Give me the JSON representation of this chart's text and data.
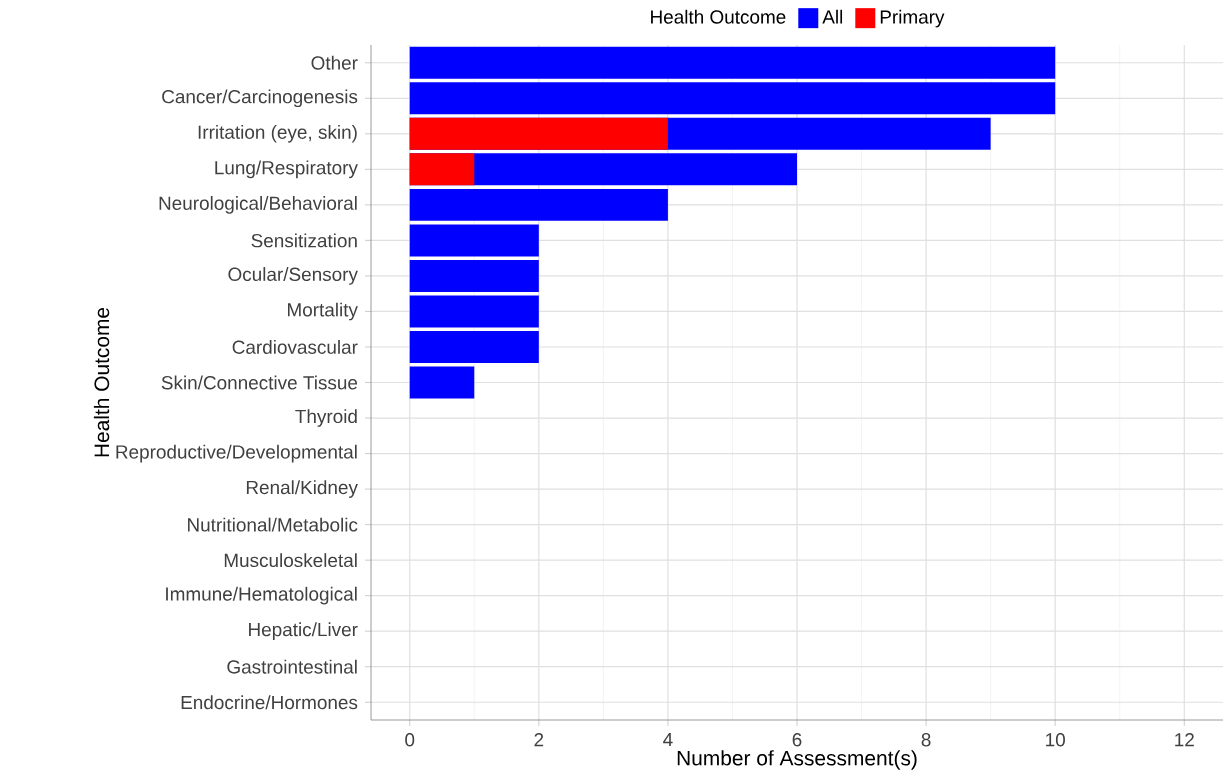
{
  "chart_data": {
    "type": "bar",
    "orientation": "horizontal",
    "xlabel": "Number of Assessment(s)",
    "ylabel": "Health Outcome",
    "legend_title": "Health Outcome",
    "categories": [
      "Other",
      "Cancer/Carcinogenesis",
      "Irritation (eye, skin)",
      "Lung/Respiratory",
      "Neurological/Behavioral",
      "Sensitization",
      "Ocular/Sensory",
      "Mortality",
      "Cardiovascular",
      "Skin/Connective Tissue",
      "Thyroid",
      "Reproductive/Developmental",
      "Renal/Kidney",
      "Nutritional/Metabolic",
      "Musculoskeletal",
      "Immune/Hematological",
      "Hepatic/Liver",
      "Gastrointestinal",
      "Endocrine/Hormones"
    ],
    "series": [
      {
        "name": "All",
        "color": "#0000ff",
        "values": [
          10,
          10,
          9,
          6,
          4,
          2,
          2,
          2,
          2,
          1,
          0,
          0,
          0,
          0,
          0,
          0,
          0,
          0,
          0
        ]
      },
      {
        "name": "Primary",
        "color": "#ff0000",
        "values": [
          0,
          0,
          4,
          1,
          0,
          0,
          0,
          0,
          0,
          0,
          0,
          0,
          0,
          0,
          0,
          0,
          0,
          0,
          0
        ]
      }
    ],
    "xlim": [
      -0.6,
      12.6
    ],
    "xticks": [
      0,
      2,
      4,
      6,
      8,
      10,
      12
    ],
    "grid": true,
    "legend": "top"
  }
}
